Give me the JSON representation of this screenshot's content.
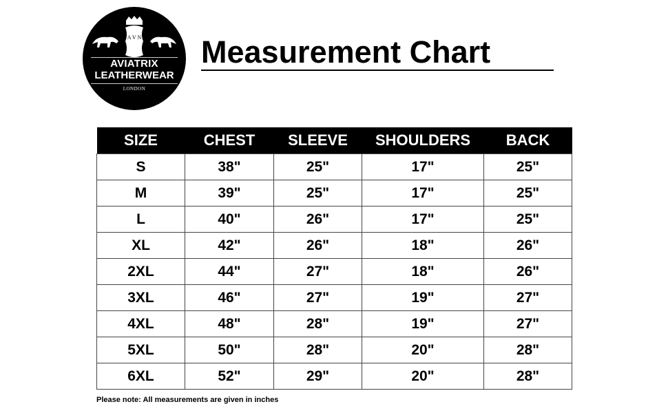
{
  "logo": {
    "line1": "AVIATRIX",
    "line2": "LEATHERWEAR",
    "line3": "LONDON",
    "monogram": "AVN"
  },
  "title": "Measurement Chart",
  "table": {
    "headers": [
      "SIZE",
      "CHEST",
      "SLEEVE",
      "SHOULDERS",
      "BACK"
    ],
    "rows": [
      [
        "S",
        "38\"",
        "25\"",
        "17\"",
        "25\""
      ],
      [
        "M",
        "39\"",
        "25\"",
        "17\"",
        "25\""
      ],
      [
        "L",
        "40\"",
        "26\"",
        "17\"",
        "25\""
      ],
      [
        "XL",
        "42\"",
        "26\"",
        "18\"",
        "26\""
      ],
      [
        "2XL",
        "44\"",
        "27\"",
        "18\"",
        "26\""
      ],
      [
        "3XL",
        "46\"",
        "27\"",
        "19\"",
        "27\""
      ],
      [
        "4XL",
        "48\"",
        "28\"",
        "19\"",
        "27\""
      ],
      [
        "5XL",
        "50\"",
        "28\"",
        "20\"",
        "28\""
      ],
      [
        "6XL",
        "52\"",
        "29\"",
        "20\"",
        "28\""
      ]
    ]
  },
  "note": "Please note: All measurements are given in inches"
}
